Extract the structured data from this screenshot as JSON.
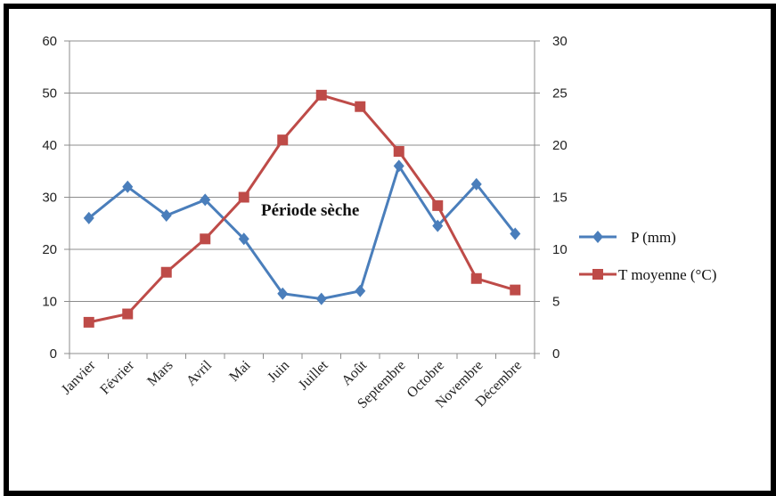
{
  "chart_data": {
    "type": "line",
    "categories": [
      "Janvier",
      "Février",
      "Mars",
      "Avril",
      "Mai",
      "Juin",
      "Juillet",
      "Août",
      "Septembre",
      "Octobre",
      "Novembre",
      "Décembre"
    ],
    "series": [
      {
        "name": "P (mm)",
        "axis": "left",
        "color": "#4a7ebb",
        "marker": "diamond",
        "values": [
          26,
          32,
          26.5,
          29.5,
          22,
          11.5,
          10.5,
          12,
          36,
          24.5,
          32.5,
          23
        ]
      },
      {
        "name": "T moyenne (°C)",
        "axis": "right",
        "color": "#be4b48",
        "marker": "square",
        "values": [
          3,
          3.8,
          7.8,
          11,
          15,
          20.5,
          24.8,
          23.7,
          19.4,
          14.2,
          7.2,
          6.1
        ]
      }
    ],
    "y_left": {
      "min": 0,
      "max": 60,
      "ticks": [
        "0",
        "10",
        "20",
        "30",
        "40",
        "50",
        "60"
      ]
    },
    "y_right": {
      "min": 0,
      "max": 30,
      "ticks": [
        "0",
        "5",
        "10",
        "15",
        "20",
        "25",
        "30"
      ]
    },
    "annotation": "Période sèche",
    "grid": true,
    "legend_position": "right",
    "title": "",
    "xlabel": "",
    "ylabel": ""
  }
}
